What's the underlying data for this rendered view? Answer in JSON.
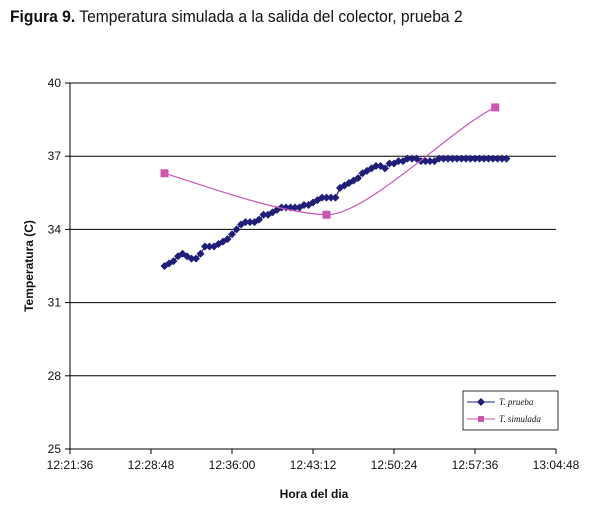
{
  "figure": {
    "label": "Figura 9.",
    "caption": "Temperatura simulada a la salida del colector, prueba 2"
  },
  "chart_data": {
    "type": "line",
    "xlabel": "Hora del dia",
    "ylabel": "Temperatura (C)",
    "x_tick_labels": [
      "12:21:36",
      "12:28:48",
      "12:36:00",
      "12:43:12",
      "12:50:24",
      "12:57:36",
      "13:04:48"
    ],
    "xlim": [
      "12:21:36",
      "13:04:48"
    ],
    "y_ticks": [
      25,
      28,
      31,
      34,
      37,
      40
    ],
    "ylim": [
      25,
      40
    ],
    "grid": "horizontal",
    "legend_position": "bottom-right",
    "colors": {
      "prueba": "#1f1f7a",
      "simulada": "#cc55b0"
    },
    "series": [
      {
        "name": "T. prueba",
        "marker": "diamond",
        "x": [
          "12:30:00",
          "12:30:24",
          "12:30:48",
          "12:31:12",
          "12:31:36",
          "12:32:00",
          "12:32:24",
          "12:32:48",
          "12:33:12",
          "12:33:36",
          "12:34:00",
          "12:34:24",
          "12:34:48",
          "12:35:12",
          "12:35:36",
          "12:36:00",
          "12:36:24",
          "12:36:48",
          "12:37:12",
          "12:37:36",
          "12:38:00",
          "12:38:24",
          "12:38:48",
          "12:39:12",
          "12:39:36",
          "12:40:00",
          "12:40:24",
          "12:40:48",
          "12:41:12",
          "12:41:36",
          "12:42:00",
          "12:42:24",
          "12:42:48",
          "12:43:12",
          "12:43:36",
          "12:44:00",
          "12:44:24",
          "12:44:48",
          "12:45:12",
          "12:45:36",
          "12:46:00",
          "12:46:24",
          "12:46:48",
          "12:47:12",
          "12:47:36",
          "12:48:00",
          "12:48:24",
          "12:48:48",
          "12:49:12",
          "12:49:36",
          "12:50:00",
          "12:50:24",
          "12:50:48",
          "12:51:12",
          "12:51:36",
          "12:52:00",
          "12:52:24",
          "12:52:48",
          "12:53:12",
          "12:53:36",
          "12:54:00",
          "12:54:24",
          "12:54:48",
          "12:55:12",
          "12:55:36",
          "12:56:00",
          "12:56:24",
          "12:56:48",
          "12:57:12",
          "12:57:36",
          "12:58:00",
          "12:58:24",
          "12:58:48",
          "12:59:12",
          "12:59:36",
          "13:00:00",
          "13:00:24"
        ],
        "y": [
          32.5,
          32.6,
          32.7,
          32.9,
          33.0,
          32.9,
          32.8,
          32.8,
          33.0,
          33.3,
          33.3,
          33.3,
          33.4,
          33.5,
          33.6,
          33.8,
          34.0,
          34.2,
          34.3,
          34.3,
          34.3,
          34.4,
          34.6,
          34.6,
          34.7,
          34.8,
          34.9,
          34.9,
          34.9,
          34.9,
          34.9,
          35.0,
          35.0,
          35.1,
          35.2,
          35.3,
          35.3,
          35.3,
          35.3,
          35.7,
          35.8,
          35.9,
          36.0,
          36.1,
          36.3,
          36.4,
          36.5,
          36.6,
          36.6,
          36.5,
          36.7,
          36.7,
          36.8,
          36.8,
          36.9,
          36.9,
          36.9,
          36.8,
          36.8,
          36.8,
          36.8,
          36.9,
          36.9,
          36.9,
          36.9,
          36.9,
          36.9,
          36.9,
          36.9,
          36.9,
          36.9,
          36.9,
          36.9,
          36.9,
          36.9,
          36.9,
          36.9
        ]
      },
      {
        "name": "T. simulada",
        "marker": "square",
        "x": [
          "12:30:00",
          "12:44:24",
          "12:59:24"
        ],
        "y": [
          36.3,
          34.6,
          39.0
        ]
      }
    ]
  }
}
